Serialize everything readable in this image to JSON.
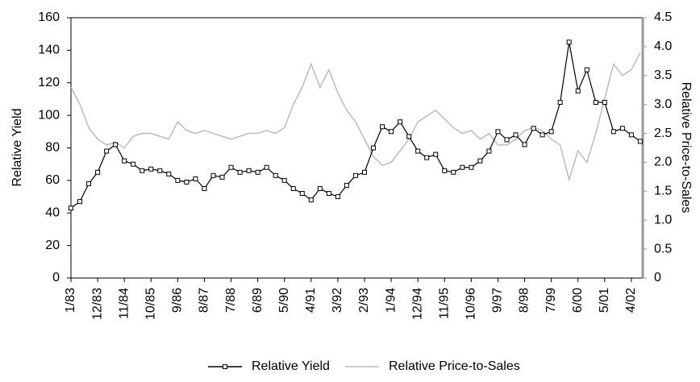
{
  "chart_data": {
    "type": "line",
    "categories": [
      "1/83",
      null,
      null,
      "12/83",
      null,
      null,
      "11/84",
      null,
      null,
      "10/85",
      null,
      null,
      "9/86",
      null,
      null,
      "8/87",
      null,
      null,
      "7/88",
      null,
      null,
      "6/89",
      null,
      null,
      "5/90",
      null,
      null,
      "4/91",
      null,
      null,
      "3/92",
      null,
      null,
      "2/93",
      null,
      null,
      "1/94",
      null,
      null,
      "12/94",
      null,
      null,
      "11/95",
      null,
      null,
      "10/96",
      null,
      null,
      "9/97",
      null,
      null,
      "8/98",
      null,
      null,
      "7/99",
      null,
      null,
      "6/00",
      null,
      null,
      "5/01",
      null,
      null,
      "4/02",
      null
    ],
    "series": [
      {
        "name": "Relative Yield",
        "color": "#000000",
        "axis": "y",
        "marker": "square",
        "values": [
          43,
          47,
          58,
          65,
          78,
          82,
          72,
          70,
          66,
          67,
          66,
          64,
          60,
          59,
          61,
          55,
          63,
          62,
          68,
          65,
          66,
          65,
          68,
          63,
          60,
          55,
          52,
          48,
          55,
          52,
          50,
          57,
          63,
          65,
          80,
          93,
          90,
          96,
          87,
          78,
          74,
          76,
          66,
          65,
          68,
          68,
          72,
          78,
          90,
          85,
          88,
          82,
          92,
          88,
          90,
          108,
          145,
          115,
          128,
          108,
          108,
          90,
          92,
          88,
          84
        ]
      },
      {
        "name": "Relative Price-to-Sales",
        "color": "#bbbbbb",
        "axis": "y2",
        "values": [
          3.3,
          3.0,
          2.6,
          2.4,
          2.3,
          2.35,
          2.25,
          2.45,
          2.5,
          2.5,
          2.45,
          2.4,
          2.7,
          2.55,
          2.5,
          2.55,
          2.5,
          2.45,
          2.4,
          2.45,
          2.5,
          2.5,
          2.55,
          2.5,
          2.6,
          3.0,
          3.3,
          3.7,
          3.3,
          3.6,
          3.2,
          2.9,
          2.7,
          2.4,
          2.1,
          1.95,
          2.0,
          2.2,
          2.4,
          2.7,
          2.8,
          2.9,
          2.75,
          2.6,
          2.5,
          2.55,
          2.4,
          2.5,
          2.3,
          2.3,
          2.4,
          2.55,
          2.6,
          2.55,
          2.4,
          2.3,
          1.7,
          2.2,
          2.0,
          2.5,
          3.1,
          3.7,
          3.5,
          3.6,
          3.9
        ]
      }
    ],
    "ylabel": "Relative Yield",
    "y2label": "Relative Price-to-Sales",
    "ylim": [
      0,
      160
    ],
    "yticks": [
      0,
      20,
      40,
      60,
      80,
      100,
      120,
      140,
      160
    ],
    "y2lim": [
      0,
      4.5
    ],
    "y2ticks": [
      0,
      {
        "value": 0.5,
        "label": "0.5"
      },
      {
        "value": 1,
        "label": "1.0"
      },
      {
        "value": 1.5,
        "label": "1.5"
      },
      {
        "value": 2,
        "label": "2.0"
      },
      {
        "value": 2.5,
        "label": "2.5"
      },
      {
        "value": 3,
        "label": "3.0"
      },
      {
        "value": 3.5,
        "label": "3.5"
      },
      {
        "value": 4,
        "label": "4.0"
      },
      {
        "value": 4.5,
        "label": "4.5"
      }
    ],
    "legend": "bottom",
    "grid": false
  }
}
